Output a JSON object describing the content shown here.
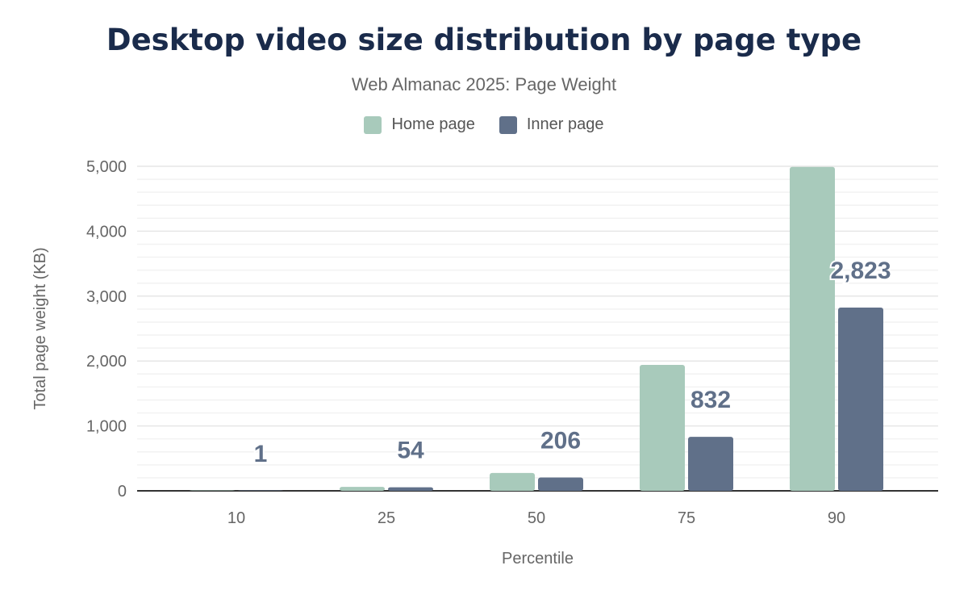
{
  "chart_data": {
    "type": "bar",
    "title": "Desktop video size distribution by page type",
    "subtitle": "Web Almanac 2025: Page Weight",
    "xlabel": "Percentile",
    "ylabel": "Total page weight (KB)",
    "categories": [
      "10",
      "25",
      "50",
      "75",
      "90"
    ],
    "ylim": [
      0,
      5000
    ],
    "yticks": [
      "0",
      "1,000",
      "2,000",
      "3,000",
      "4,000",
      "5,000"
    ],
    "grid": true,
    "legend_position": "top",
    "series": [
      {
        "name": "Home page",
        "color": "#a8cabb",
        "values": [
          1,
          60,
          275,
          1940,
          4990
        ],
        "labels": [
          "",
          "",
          "",
          "",
          ""
        ]
      },
      {
        "name": "Inner page",
        "color": "#607089",
        "values": [
          1,
          54,
          206,
          832,
          2823
        ],
        "labels": [
          "1",
          "54",
          "206",
          "832",
          "2,823"
        ]
      }
    ]
  }
}
